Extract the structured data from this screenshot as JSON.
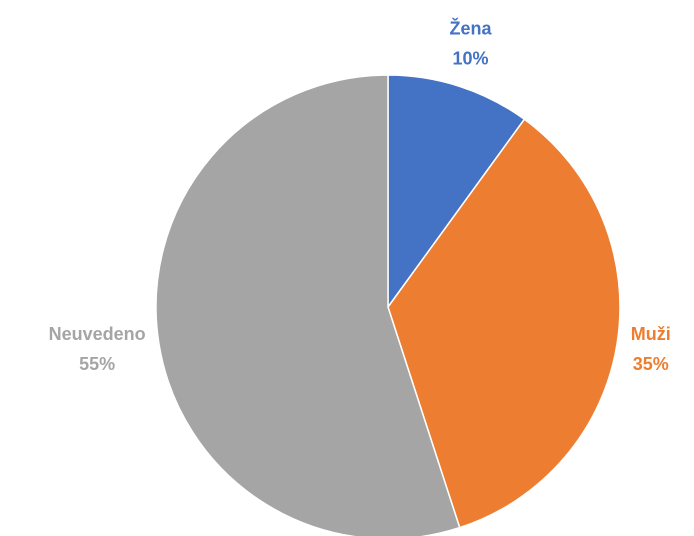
{
  "chart_data": {
    "type": "pie",
    "categories": [
      "Žena",
      "Muži",
      "Neuvedeno"
    ],
    "values": [
      10,
      35,
      55
    ],
    "value_labels": [
      "10%",
      "35%",
      "55%"
    ],
    "colors": [
      "#4472c4",
      "#ed7d31",
      "#a5a5a5"
    ]
  }
}
